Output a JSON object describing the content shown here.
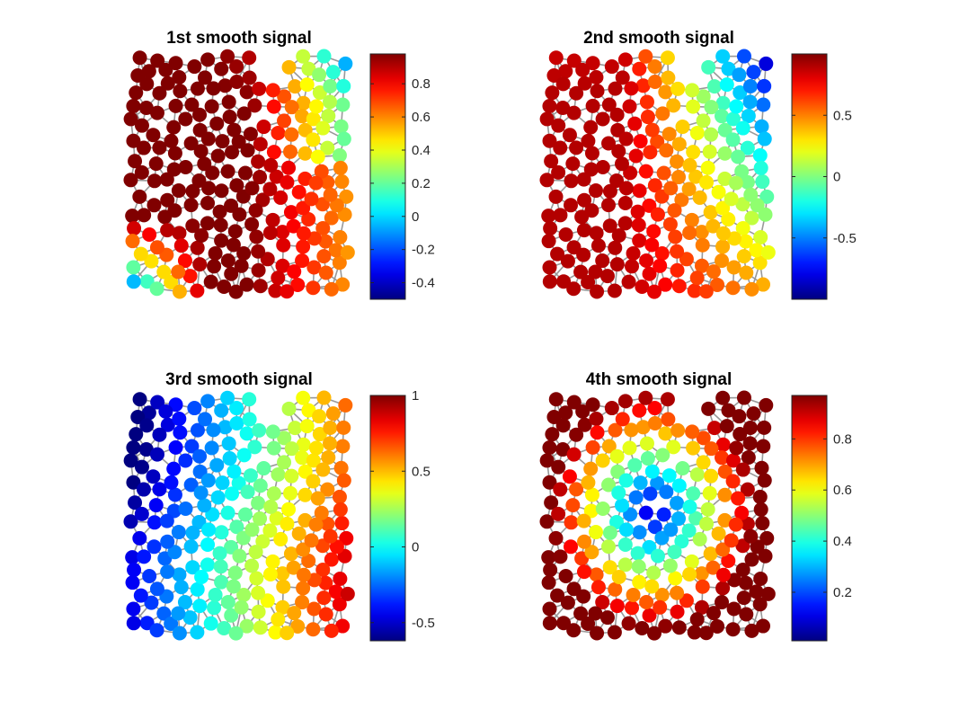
{
  "figure": {
    "background": "#ffffff",
    "edge_color": "#999999",
    "colormap": "jet"
  },
  "chart_data": [
    {
      "type": "scatter",
      "subtype": "graph-signal",
      "title": "1st smooth signal",
      "colorbar": {
        "range": [
          -0.5,
          0.98
        ],
        "ticks": [
          0.8,
          0.6,
          0.4,
          0.2,
          0,
          -0.2,
          -0.4
        ],
        "tick_labels": [
          "0.8",
          "0.6",
          "0.4",
          "0.2",
          "0",
          "-0.2",
          "-0.4"
        ]
      },
      "axis_range": {
        "x": [
          0,
          1
        ],
        "y": [
          0,
          1
        ]
      },
      "grid": false
    },
    {
      "type": "scatter",
      "subtype": "graph-signal",
      "title": "2nd smooth signal",
      "colorbar": {
        "range": [
          -1,
          1
        ],
        "ticks": [
          0.5,
          0,
          -0.5
        ],
        "tick_labels": [
          "0.5",
          "0",
          "-0.5"
        ]
      },
      "axis_range": {
        "x": [
          0,
          1
        ],
        "y": [
          0,
          1
        ]
      },
      "grid": false
    },
    {
      "type": "scatter",
      "subtype": "graph-signal",
      "title": "3rd smooth signal",
      "colorbar": {
        "range": [
          -0.62,
          1
        ],
        "ticks": [
          1,
          0.5,
          0,
          -0.5
        ],
        "tick_labels": [
          "1",
          "0.5",
          "0",
          "-0.5"
        ]
      },
      "axis_range": {
        "x": [
          0,
          1
        ],
        "y": [
          0,
          1
        ]
      },
      "grid": false
    },
    {
      "type": "scatter",
      "subtype": "graph-signal",
      "title": "4th smooth signal",
      "colorbar": {
        "range": [
          0.01,
          0.97
        ],
        "ticks": [
          0.8,
          0.6,
          0.4,
          0.2
        ],
        "tick_labels": [
          "0.8",
          "0.6",
          "0.4",
          "0.2"
        ]
      },
      "axis_range": {
        "x": [
          0,
          1
        ],
        "y": [
          0,
          1
        ]
      },
      "grid": false
    }
  ]
}
